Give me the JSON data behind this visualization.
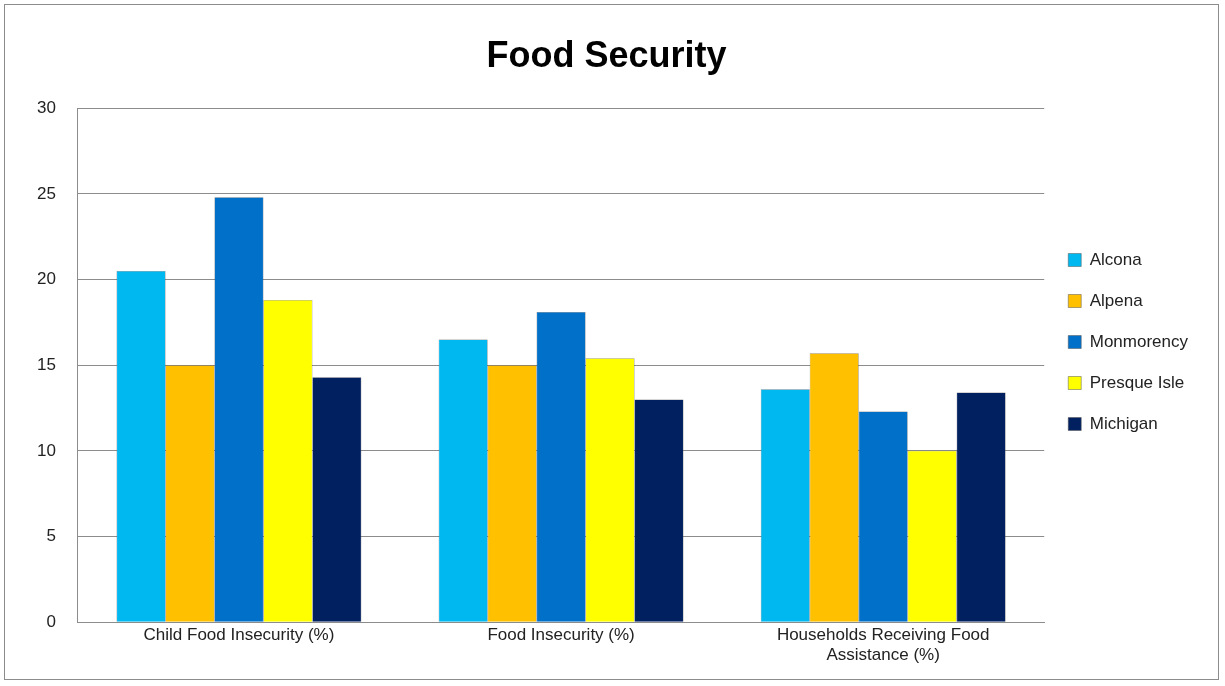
{
  "chart_data": {
    "type": "bar",
    "title": "Food Security",
    "categories": [
      "Child Food Insecurity (%)",
      "Food Insecurity (%)",
      "Households Receiving Food Assistance (%)"
    ],
    "series": [
      {
        "name": "Alcona",
        "color": "#00b8f0",
        "values": [
          20.5,
          16.5,
          13.6
        ]
      },
      {
        "name": "Alpena",
        "color": "#ffc000",
        "values": [
          15.0,
          15.0,
          15.7
        ]
      },
      {
        "name": "Monmorency",
        "color": "#0070c8",
        "values": [
          24.8,
          18.1,
          12.3
        ]
      },
      {
        "name": "Presque Isle",
        "color": "#ffff00",
        "values": [
          18.8,
          15.4,
          10.0
        ]
      },
      {
        "name": "Michigan",
        "color": "#002060",
        "values": [
          14.3,
          13.0,
          13.4
        ]
      }
    ],
    "ylim": [
      0,
      30
    ],
    "yticks": [
      0,
      5,
      10,
      15,
      20,
      25,
      30
    ],
    "grid": "y",
    "legend": "right"
  }
}
